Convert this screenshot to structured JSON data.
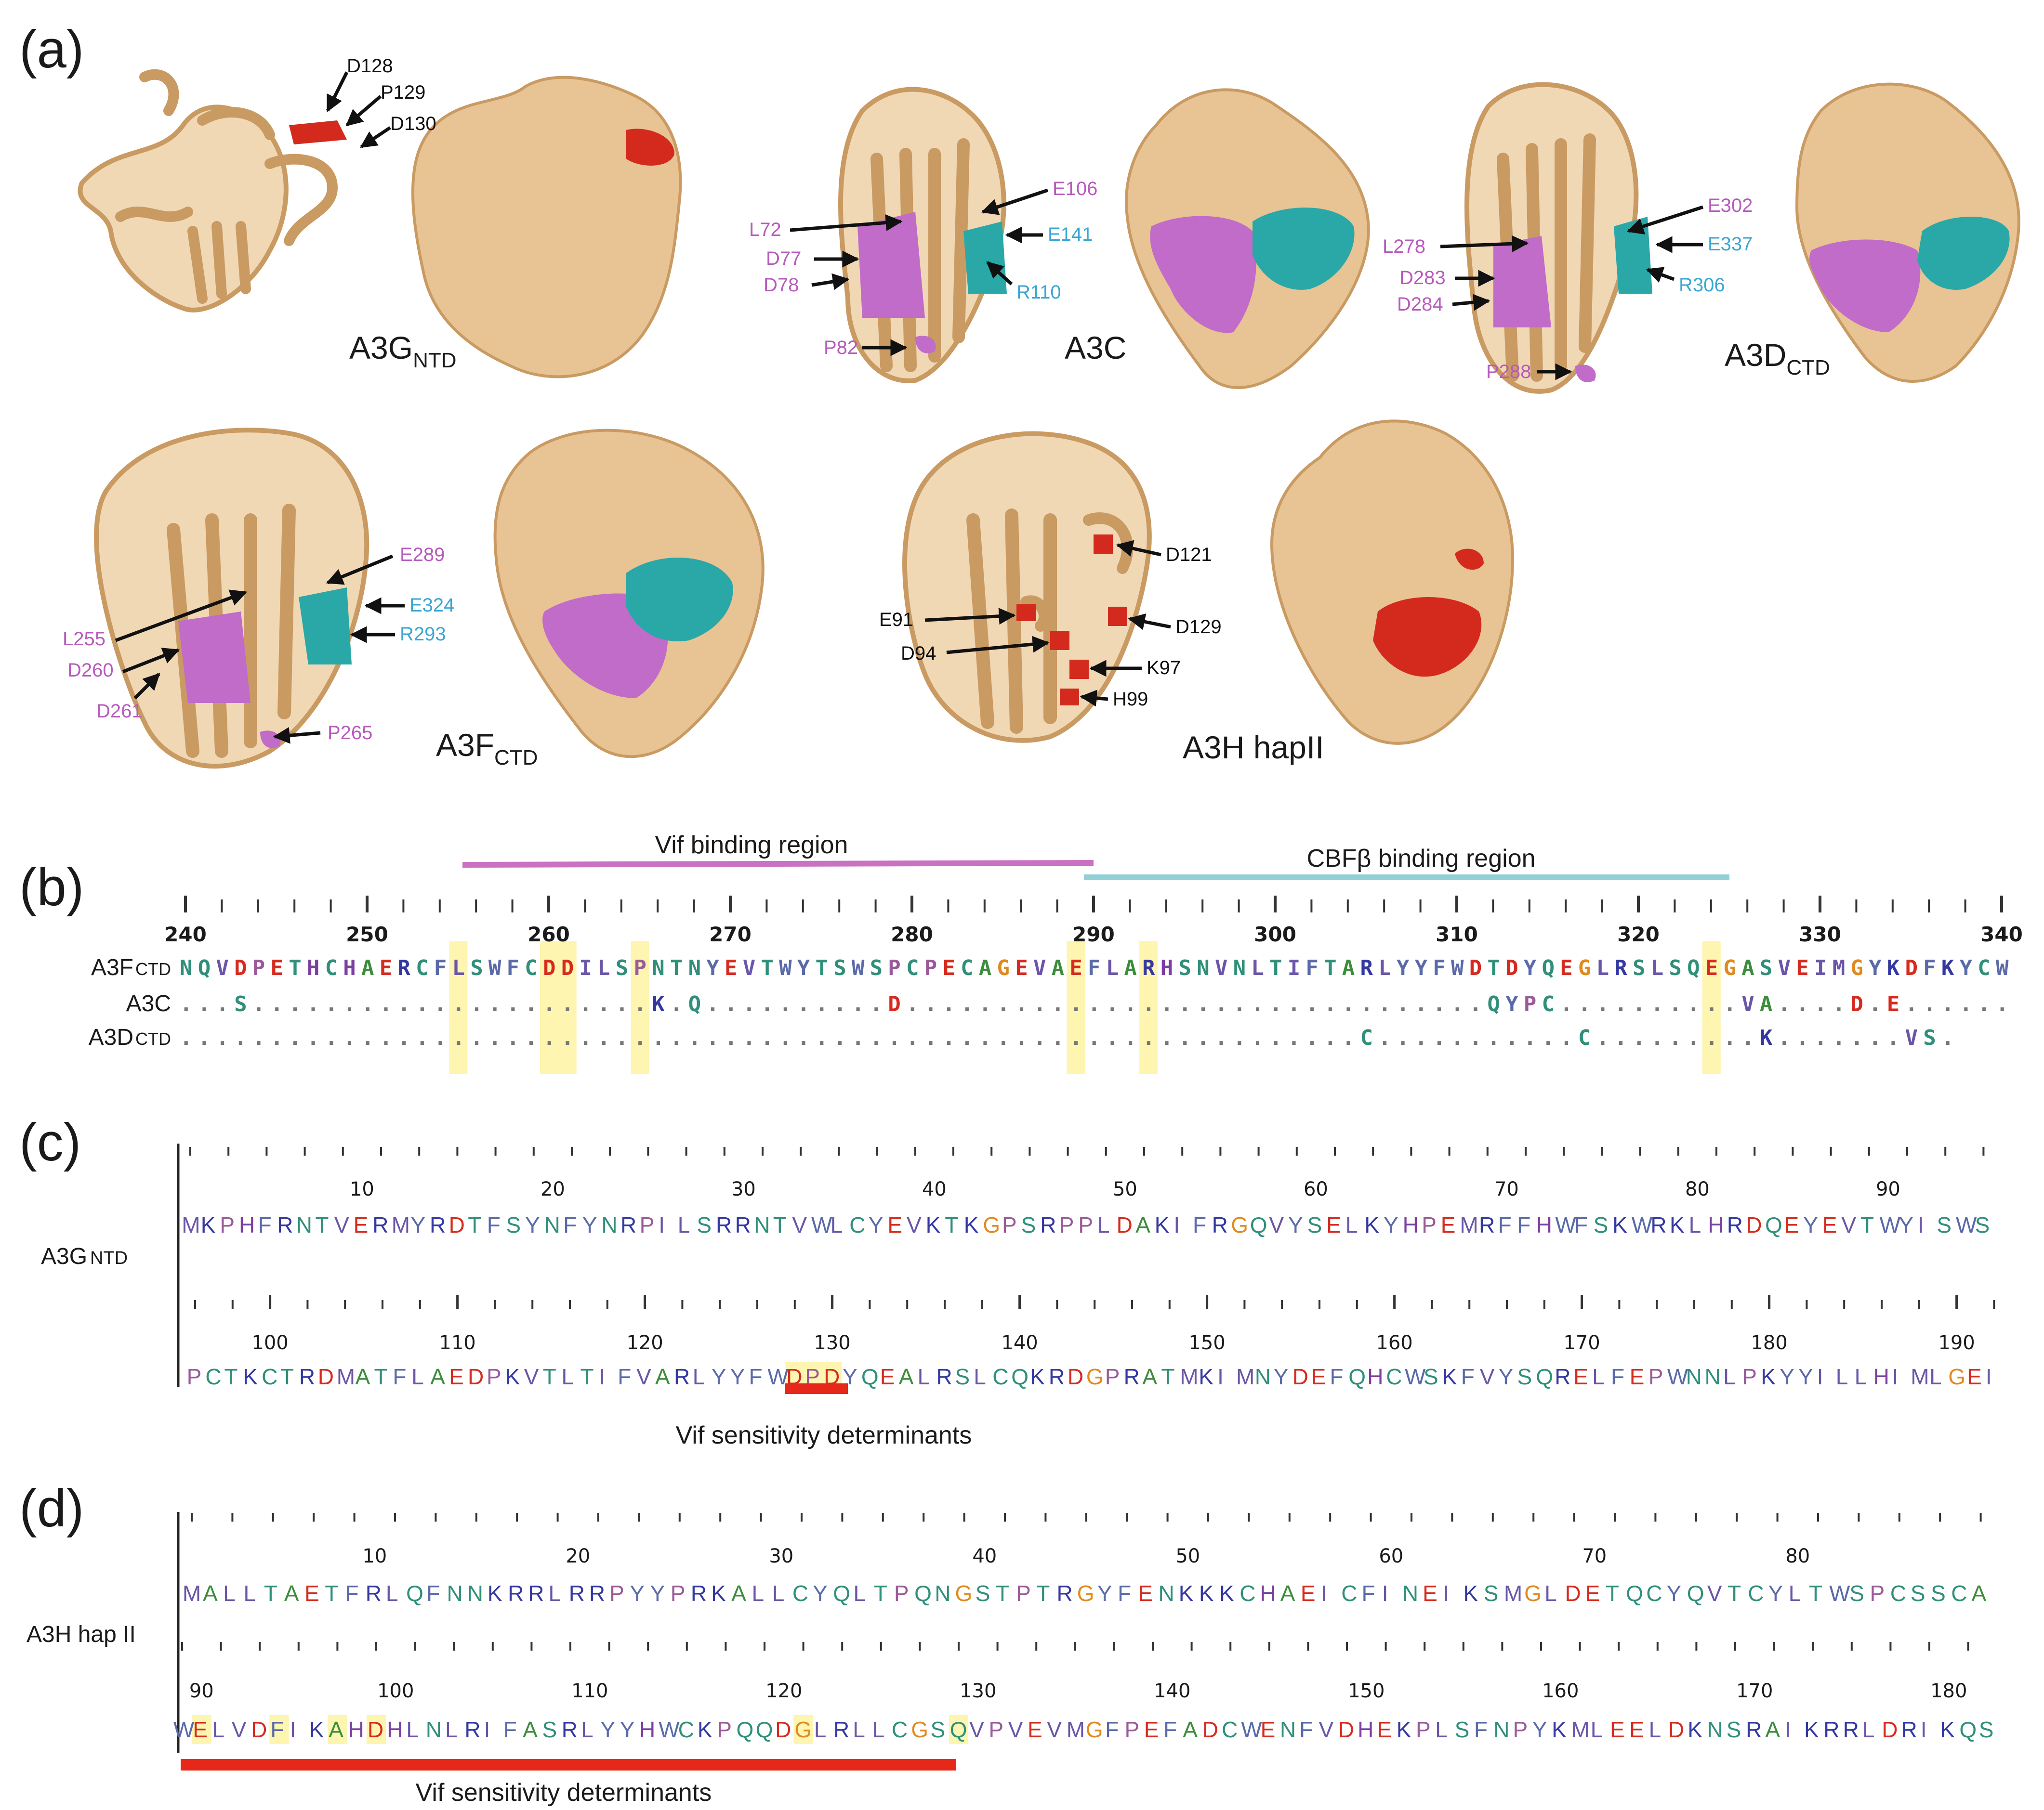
{
  "panels": {
    "a": "(a)",
    "b": "(b)",
    "c": "(c)",
    "d": "(d)"
  },
  "colors": {
    "protein": "#e8c394",
    "protein_dark": "#c99a62",
    "magenta": "#c06cc8",
    "magenta_text": "#b75bbd",
    "teal": "#2aa8a8",
    "teal_text": "#3aa6d2",
    "red": "#d42a1e",
    "highlight": "#fdf5b0",
    "vif_line": "#c971c2",
    "cbf_line": "#92d0d6"
  },
  "structures": {
    "a3g_ntd": {
      "name": "A3G",
      "sub": "NTD",
      "residues": [
        "D128",
        "P129",
        "D130"
      ]
    },
    "a3c": {
      "name": "A3C",
      "magenta": [
        "L72",
        "D77",
        "D78",
        "P82"
      ],
      "teal": [
        "E106",
        "E141",
        "R110"
      ]
    },
    "a3d_ctd": {
      "name": "A3D",
      "sub": "CTD",
      "magenta": [
        "L278",
        "D283",
        "D284",
        "P288"
      ],
      "teal": [
        "E302",
        "E337",
        "R306"
      ]
    },
    "a3f_ctd": {
      "name": "A3F",
      "sub": "CTD",
      "magenta": [
        "L255",
        "D260",
        "D261",
        "P265"
      ],
      "teal": [
        "E289",
        "E324",
        "R293"
      ]
    },
    "a3h": {
      "name": "A3H hapII",
      "residues": [
        "D121",
        "E91",
        "D129",
        "D94",
        "K97",
        "H99"
      ]
    }
  },
  "panel_b": {
    "vif_region": "Vif binding region",
    "cbf_region": "CBFβ binding region",
    "ruler": [
      "240",
      "250",
      "260",
      "270",
      "280",
      "290",
      "300",
      "310",
      "320",
      "330",
      "340"
    ],
    "rows": [
      {
        "label": "A3F",
        "sub": "CTD",
        "seq": "NQVDPETHCHAERCFLSWFCDDILSPNTNYEVTWYTSWSPCPECAGEVAEFLARHSNVNLTIFTARLYYFWDTDYQEGLRSLSQEGASVEIMGYKDFKYCW"
      },
      {
        "label": "A3C",
        "sub": "",
        "seq": "...S......................K.Q..........D................................QYPC..........VA....D.E......"
      },
      {
        "label": "A3D",
        "sub": "CTD",
        "seq": ".................................................................C...........C.........K.......VS."
      }
    ]
  },
  "panel_c": {
    "label": "A3G",
    "sub": "NTD",
    "ruler1": [
      "10",
      "20",
      "30",
      "40",
      "50",
      "60",
      "70",
      "80",
      "90"
    ],
    "seq1": "MKPHFRNTVERMYRDTFSYNFYNRPILSRRNTVWLCYEVKTKGPSRPPLDAKIFRGQVYSELKYHPEMRFFHWFSKWRKLHRDQEYEVTWYISWS",
    "ruler2": [
      "100",
      "110",
      "120",
      "130",
      "140",
      "150",
      "160",
      "170",
      "180",
      "190"
    ],
    "seq2": "PCTKCTRDMATFLAEDPKVTLTIFVARLYYFWDPDYQEALRSLCQKRDGPRATMKIMNYDEFQHCWSKFVYSQRELFEPWNNLPKYYILLHIMLGEI",
    "vif_label": "Vif sensitivity determinants"
  },
  "panel_d": {
    "label": "A3H hap II",
    "ruler1": [
      "10",
      "20",
      "30",
      "40",
      "50",
      "60",
      "70",
      "80"
    ],
    "seq1": "MALLTAETFRLQFNNKRRLRRPYYPRKALLCYQLTPQNGSTPTRGYFENKKKCHAEICFINEIKSMGLDETQCYQVTCYLTWSPCSSCA",
    "ruler2": [
      "90",
      "100",
      "110",
      "120",
      "130",
      "140",
      "150",
      "160",
      "170",
      "180"
    ],
    "seq2": "WELVDFIKAHDHLNLRIFASRLYYHWCKPQQDGLRLLCGSQVPVEVMGFPEFADCWENFVDHEKPLSFNPYKMLEELDKNSRAIKRRLDRIKQS",
    "vif_label": "Vif sensitivity determinants"
  }
}
